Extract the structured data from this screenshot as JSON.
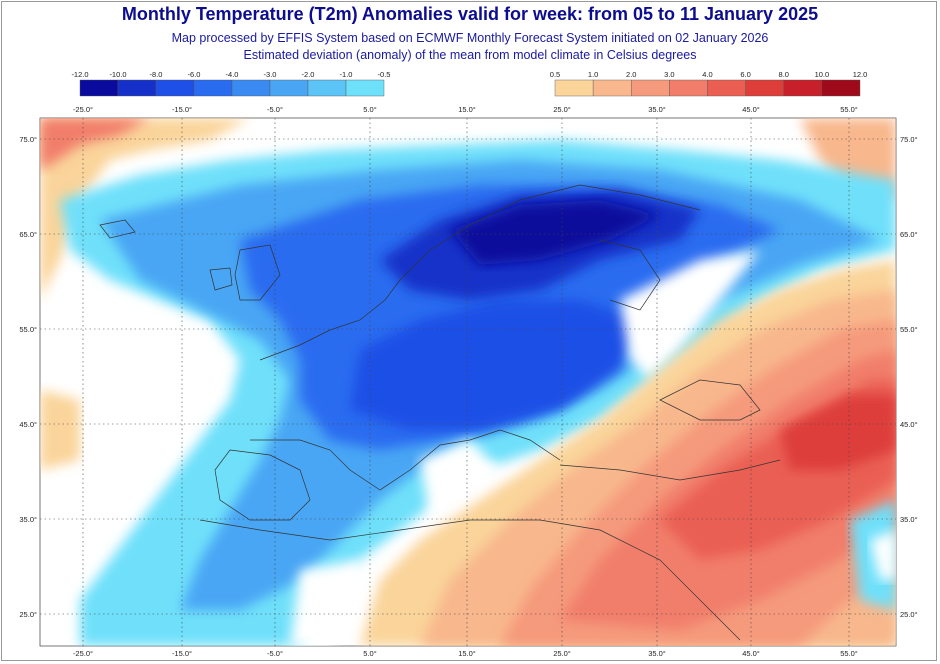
{
  "title": "Monthly Temperature (T2m) Anomalies valid for week: from 05 to 11 January 2025",
  "subtitle_1": "Map processed by EFFIS System based on ECMWF Monthly Forecast System initiated on 02 January 2026",
  "subtitle_2": "Estimated deviation (anomaly) of the mean from model climate in Celsius degrees",
  "colorbar_cold": {
    "ticks": [
      "-12.0",
      "-10.0",
      "-8.0",
      "-6.0",
      "-4.0",
      "-3.0",
      "-2.0",
      "-1.0",
      "-0.5"
    ],
    "colors": [
      "#0a0a9c",
      "#1530c8",
      "#1e4fe6",
      "#2a6cf0",
      "#3a8af2",
      "#4aa6f4",
      "#5cc4f6",
      "#6fe0fa"
    ]
  },
  "colorbar_warm": {
    "ticks": [
      "0.5",
      "1.0",
      "2.0",
      "3.0",
      "4.0",
      "6.0",
      "8.0",
      "10.0",
      "12.0"
    ],
    "colors": [
      "#fad49a",
      "#f8b78c",
      "#f59a7c",
      "#f17e6a",
      "#ea5f52",
      "#dd3e3a",
      "#c8202a",
      "#9e0a1a"
    ]
  },
  "longitude_labels": [
    "-25.0°",
    "-15.0°",
    "-5.0°",
    "5.0°",
    "15.0°",
    "25.0°",
    "35.0°",
    "45.0°",
    "55.0°"
  ],
  "latitude_labels": [
    "75.0°",
    "65.0°",
    "55.0°",
    "45.0°",
    "35.0°",
    "25.0°"
  ]
}
